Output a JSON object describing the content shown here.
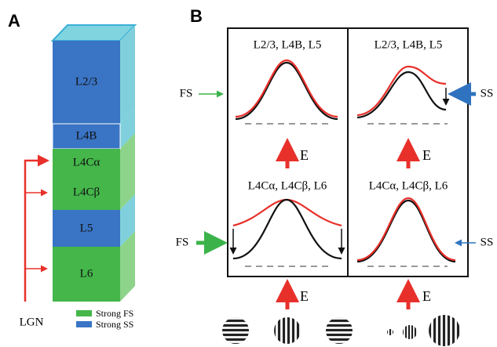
{
  "panel_a": {
    "label": "A",
    "layers": [
      {
        "label": "L2/3"
      },
      {
        "label": "L4B"
      },
      {
        "label": "L4Cα"
      },
      {
        "label": "L4Cβ"
      },
      {
        "label": "L5"
      },
      {
        "label": "L6"
      }
    ],
    "input": "LGN",
    "legend": [
      {
        "label": "Strong FS"
      },
      {
        "label": "Strong SS"
      }
    ]
  },
  "panel_b": {
    "label": "B",
    "columns": [
      {
        "top_title": "L2/3, L4B, L5",
        "bottom_title": "L4Cα, L4Cβ, L6",
        "drive": [
          "E",
          "E"
        ],
        "inhibition": [
          "FS",
          "FS"
        ]
      },
      {
        "top_title": "L2/3, L4B, L5",
        "bottom_title": "L4Cα, L4Cβ, L6",
        "drive": [
          "E",
          "E"
        ],
        "inhibition": [
          "SS",
          "SS"
        ]
      }
    ]
  }
}
